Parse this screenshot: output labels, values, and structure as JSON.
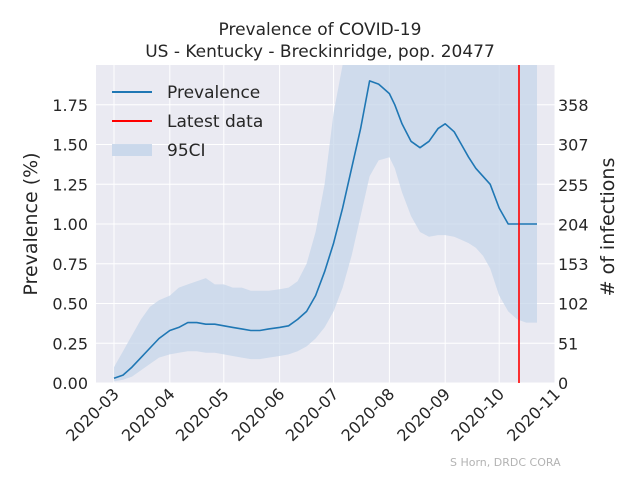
{
  "chart_data": {
    "type": "line",
    "title": "Prevalence of COVID-19",
    "subtitle": "US - Kentucky - Breckinridge, pop. 20477",
    "ylabel": "Prevalence (%)",
    "y2label": "# of infections",
    "xlabel": "",
    "ylim": [
      0,
      2.0
    ],
    "yticks": [
      0.0,
      0.25,
      0.5,
      0.75,
      1.0,
      1.25,
      1.5,
      1.75
    ],
    "ytick_labels": [
      "0.00",
      "0.25",
      "0.50",
      "0.75",
      "1.00",
      "1.25",
      "1.50",
      "1.75"
    ],
    "y2ticks": [
      0,
      51,
      102,
      153,
      204,
      255,
      307,
      358
    ],
    "xlim": [
      "2020-02-20",
      "2020-11-01"
    ],
    "xticks": [
      "2020-03-01",
      "2020-04-01",
      "2020-05-01",
      "2020-06-01",
      "2020-07-01",
      "2020-08-01",
      "2020-09-01",
      "2020-10-01",
      "2020-11-01"
    ],
    "xtick_labels": [
      "2020-03",
      "2020-04",
      "2020-05",
      "2020-06",
      "2020-07",
      "2020-08",
      "2020-09",
      "2020-10",
      "2020-11"
    ],
    "grid": true,
    "legend_position": "top-left",
    "series": [
      {
        "name": "Prevalence",
        "color": "#1f77b4",
        "x": [
          "2020-03-01",
          "2020-03-06",
          "2020-03-11",
          "2020-03-16",
          "2020-03-21",
          "2020-03-26",
          "2020-04-01",
          "2020-04-06",
          "2020-04-11",
          "2020-04-16",
          "2020-04-21",
          "2020-04-26",
          "2020-05-01",
          "2020-05-06",
          "2020-05-11",
          "2020-05-16",
          "2020-05-21",
          "2020-05-26",
          "2020-06-01",
          "2020-06-06",
          "2020-06-11",
          "2020-06-16",
          "2020-06-21",
          "2020-06-26",
          "2020-07-01",
          "2020-07-06",
          "2020-07-11",
          "2020-07-16",
          "2020-07-21",
          "2020-07-26",
          "2020-08-01",
          "2020-08-04",
          "2020-08-08",
          "2020-08-13",
          "2020-08-18",
          "2020-08-23",
          "2020-08-28",
          "2020-09-01",
          "2020-09-06",
          "2020-09-10",
          "2020-09-14",
          "2020-09-18",
          "2020-09-22",
          "2020-09-26",
          "2020-10-01",
          "2020-10-06",
          "2020-10-11",
          "2020-10-16",
          "2020-10-22"
        ],
        "values": [
          0.03,
          0.05,
          0.1,
          0.16,
          0.22,
          0.28,
          0.33,
          0.35,
          0.38,
          0.38,
          0.37,
          0.37,
          0.36,
          0.35,
          0.34,
          0.33,
          0.33,
          0.34,
          0.35,
          0.36,
          0.4,
          0.45,
          0.55,
          0.7,
          0.88,
          1.1,
          1.35,
          1.6,
          1.9,
          1.88,
          1.82,
          1.75,
          1.63,
          1.52,
          1.48,
          1.52,
          1.6,
          1.63,
          1.58,
          1.5,
          1.42,
          1.35,
          1.3,
          1.25,
          1.1,
          1.0,
          1.0,
          1.0,
          1.0
        ]
      }
    ],
    "band": {
      "name": "95CI",
      "color": "#c6d6ea",
      "x": [
        "2020-03-01",
        "2020-03-06",
        "2020-03-11",
        "2020-03-16",
        "2020-03-21",
        "2020-03-26",
        "2020-04-01",
        "2020-04-06",
        "2020-04-11",
        "2020-04-16",
        "2020-04-21",
        "2020-04-26",
        "2020-05-01",
        "2020-05-06",
        "2020-05-11",
        "2020-05-16",
        "2020-05-21",
        "2020-05-26",
        "2020-06-01",
        "2020-06-06",
        "2020-06-11",
        "2020-06-16",
        "2020-06-21",
        "2020-06-26",
        "2020-07-01",
        "2020-07-06",
        "2020-07-11",
        "2020-07-16",
        "2020-07-21",
        "2020-07-26",
        "2020-08-01",
        "2020-08-04",
        "2020-08-08",
        "2020-08-13",
        "2020-08-18",
        "2020-08-23",
        "2020-08-28",
        "2020-09-01",
        "2020-09-06",
        "2020-09-10",
        "2020-09-14",
        "2020-09-18",
        "2020-09-22",
        "2020-09-26",
        "2020-10-01",
        "2020-10-06",
        "2020-10-11",
        "2020-10-16",
        "2020-10-22"
      ],
      "lower": [
        0.01,
        0.02,
        0.04,
        0.08,
        0.12,
        0.16,
        0.18,
        0.19,
        0.2,
        0.2,
        0.19,
        0.19,
        0.18,
        0.17,
        0.16,
        0.15,
        0.15,
        0.16,
        0.17,
        0.18,
        0.2,
        0.23,
        0.28,
        0.35,
        0.45,
        0.6,
        0.8,
        1.05,
        1.3,
        1.4,
        1.42,
        1.35,
        1.2,
        1.05,
        0.95,
        0.92,
        0.93,
        0.93,
        0.92,
        0.9,
        0.88,
        0.85,
        0.8,
        0.72,
        0.55,
        0.45,
        0.4,
        0.38,
        0.38
      ],
      "upper": [
        0.1,
        0.2,
        0.3,
        0.4,
        0.48,
        0.52,
        0.55,
        0.6,
        0.62,
        0.64,
        0.66,
        0.62,
        0.62,
        0.6,
        0.6,
        0.58,
        0.58,
        0.58,
        0.59,
        0.6,
        0.64,
        0.75,
        0.95,
        1.25,
        1.7,
        2.0,
        2.0,
        2.0,
        2.0,
        2.0,
        2.0,
        2.0,
        2.0,
        2.0,
        2.0,
        2.0,
        2.0,
        2.0,
        2.0,
        2.0,
        2.0,
        2.0,
        2.0,
        2.0,
        2.0,
        2.0,
        2.0,
        2.0,
        2.0
      ]
    },
    "vline": {
      "name": "Latest data",
      "x": "2020-10-12",
      "color": "#ff0000"
    },
    "legend": [
      "Prevalence",
      "Latest data",
      "95CI"
    ]
  },
  "credit": "S Horn, DRDC CORA"
}
